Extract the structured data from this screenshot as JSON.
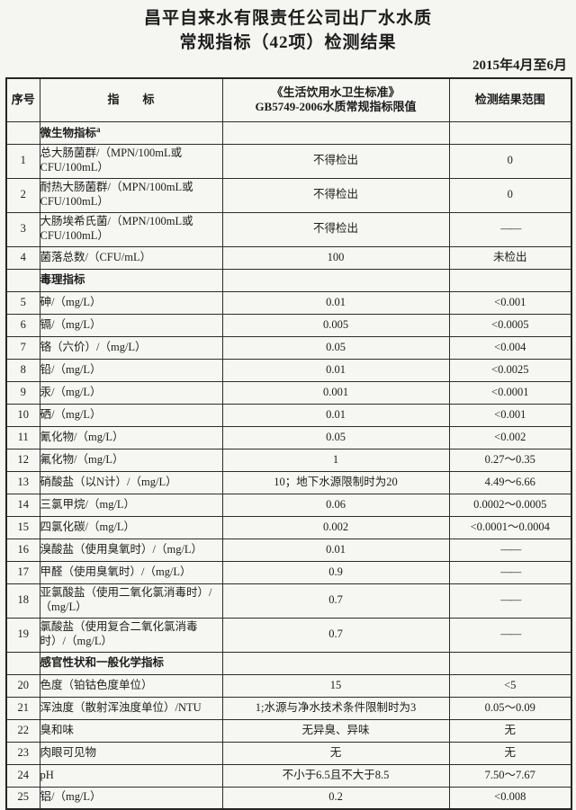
{
  "page": {
    "title_line1": "昌平自来水有限责任公司出厂水水质",
    "title_line2": "常规指标（42项）检测结果",
    "period": "2015年4月至6月"
  },
  "table": {
    "columns": {
      "no": "序号",
      "indicator": "指　　标",
      "limit_line1": "《生活饮用水卫生标准》",
      "limit_line2": "GB5749-2006水质常规指标限值",
      "result": "检测结果范围"
    },
    "rows": [
      {
        "type": "section",
        "label": "微生物指标",
        "sup": "a"
      },
      {
        "type": "data",
        "no": "1",
        "indicator": "总大肠菌群/（MPN/100mL或CFU/100mL）",
        "limit": "不得检出",
        "result": "0",
        "tall": true
      },
      {
        "type": "data",
        "no": "2",
        "indicator": "耐热大肠菌群/（MPN/100mL或CFU/100mL）",
        "limit": "不得检出",
        "result": "0",
        "tall": true
      },
      {
        "type": "data",
        "no": "3",
        "indicator": "大肠埃希氏菌/（MPN/100mL或CFU/100mL）",
        "limit": "不得检出",
        "result": "——",
        "tall": true
      },
      {
        "type": "data",
        "no": "4",
        "indicator": "菌落总数/（CFU/mL）",
        "limit": "100",
        "result": "未检出"
      },
      {
        "type": "section",
        "label": "毒理指标"
      },
      {
        "type": "data",
        "no": "5",
        "indicator": "砷/（mg/L）",
        "limit": "0.01",
        "result": "<0.001"
      },
      {
        "type": "data",
        "no": "6",
        "indicator": "镉/（mg/L）",
        "limit": "0.005",
        "result": "<0.0005"
      },
      {
        "type": "data",
        "no": "7",
        "indicator": "铬（六价）/（mg/L）",
        "limit": "0.05",
        "result": "<0.004"
      },
      {
        "type": "data",
        "no": "8",
        "indicator": "铅/（mg/L）",
        "limit": "0.01",
        "result": "<0.0025"
      },
      {
        "type": "data",
        "no": "9",
        "indicator": "汞/（mg/L）",
        "limit": "0.001",
        "result": "<0.0001"
      },
      {
        "type": "data",
        "no": "10",
        "indicator": "硒/（mg/L）",
        "limit": "0.01",
        "result": "<0.001"
      },
      {
        "type": "data",
        "no": "11",
        "indicator": "氰化物/（mg/L）",
        "limit": "0.05",
        "result": "<0.002"
      },
      {
        "type": "data",
        "no": "12",
        "indicator": "氟化物/（mg/L）",
        "limit": "1",
        "result": "0.27～0.35"
      },
      {
        "type": "data",
        "no": "13",
        "indicator": "硝酸盐（以N计）/（mg/L）",
        "limit": "10；地下水源限制时为20",
        "result": "4.49～6.66"
      },
      {
        "type": "data",
        "no": "14",
        "indicator": "三氯甲烷/（mg/L）",
        "limit": "0.06",
        "result": "0.0002～0.0005"
      },
      {
        "type": "data",
        "no": "15",
        "indicator": "四氯化碳/（mg/L）",
        "limit": "0.002",
        "result": "<0.0001～0.0004"
      },
      {
        "type": "data",
        "no": "16",
        "indicator": "溴酸盐（使用臭氧时）/（mg/L）",
        "limit": "0.01",
        "result": "——"
      },
      {
        "type": "data",
        "no": "17",
        "indicator": "甲醛（使用臭氧时）/（mg/L）",
        "limit": "0.9",
        "result": "——"
      },
      {
        "type": "data",
        "no": "18",
        "indicator": "亚氯酸盐（使用二氧化氯消毒时）/（mg/L）",
        "limit": "0.7",
        "result": "——",
        "tall": true
      },
      {
        "type": "data",
        "no": "19",
        "indicator": "氯酸盐（使用复合二氧化氯消毒时）/（mg/L）",
        "limit": "0.7",
        "result": "——",
        "tall": true
      },
      {
        "type": "section",
        "label": "感官性状和一般化学指标"
      },
      {
        "type": "data",
        "no": "20",
        "indicator": "色度（铂钴色度单位）",
        "limit": "15",
        "result": "<5"
      },
      {
        "type": "data",
        "no": "21",
        "indicator": "浑浊度（散射浑浊度单位）/NTU",
        "limit": "1;水源与净水技术条件限制时为3",
        "result": "0.05～0.09"
      },
      {
        "type": "data",
        "no": "22",
        "indicator": "臭和味",
        "limit": "无异臭、异味",
        "result": "无"
      },
      {
        "type": "data",
        "no": "23",
        "indicator": "肉眼可见物",
        "limit": "无",
        "result": "无"
      },
      {
        "type": "data",
        "no": "24",
        "indicator": "pH",
        "limit": "不小于6.5且不大于8.5",
        "result": "7.50～7.67"
      },
      {
        "type": "data",
        "no": "25",
        "indicator": "铝/（mg/L）",
        "limit": "0.2",
        "result": "<0.008"
      }
    ]
  },
  "colors": {
    "background": "#f5f5f2",
    "text": "#1d1d1d",
    "border": "#2c2c2c"
  }
}
